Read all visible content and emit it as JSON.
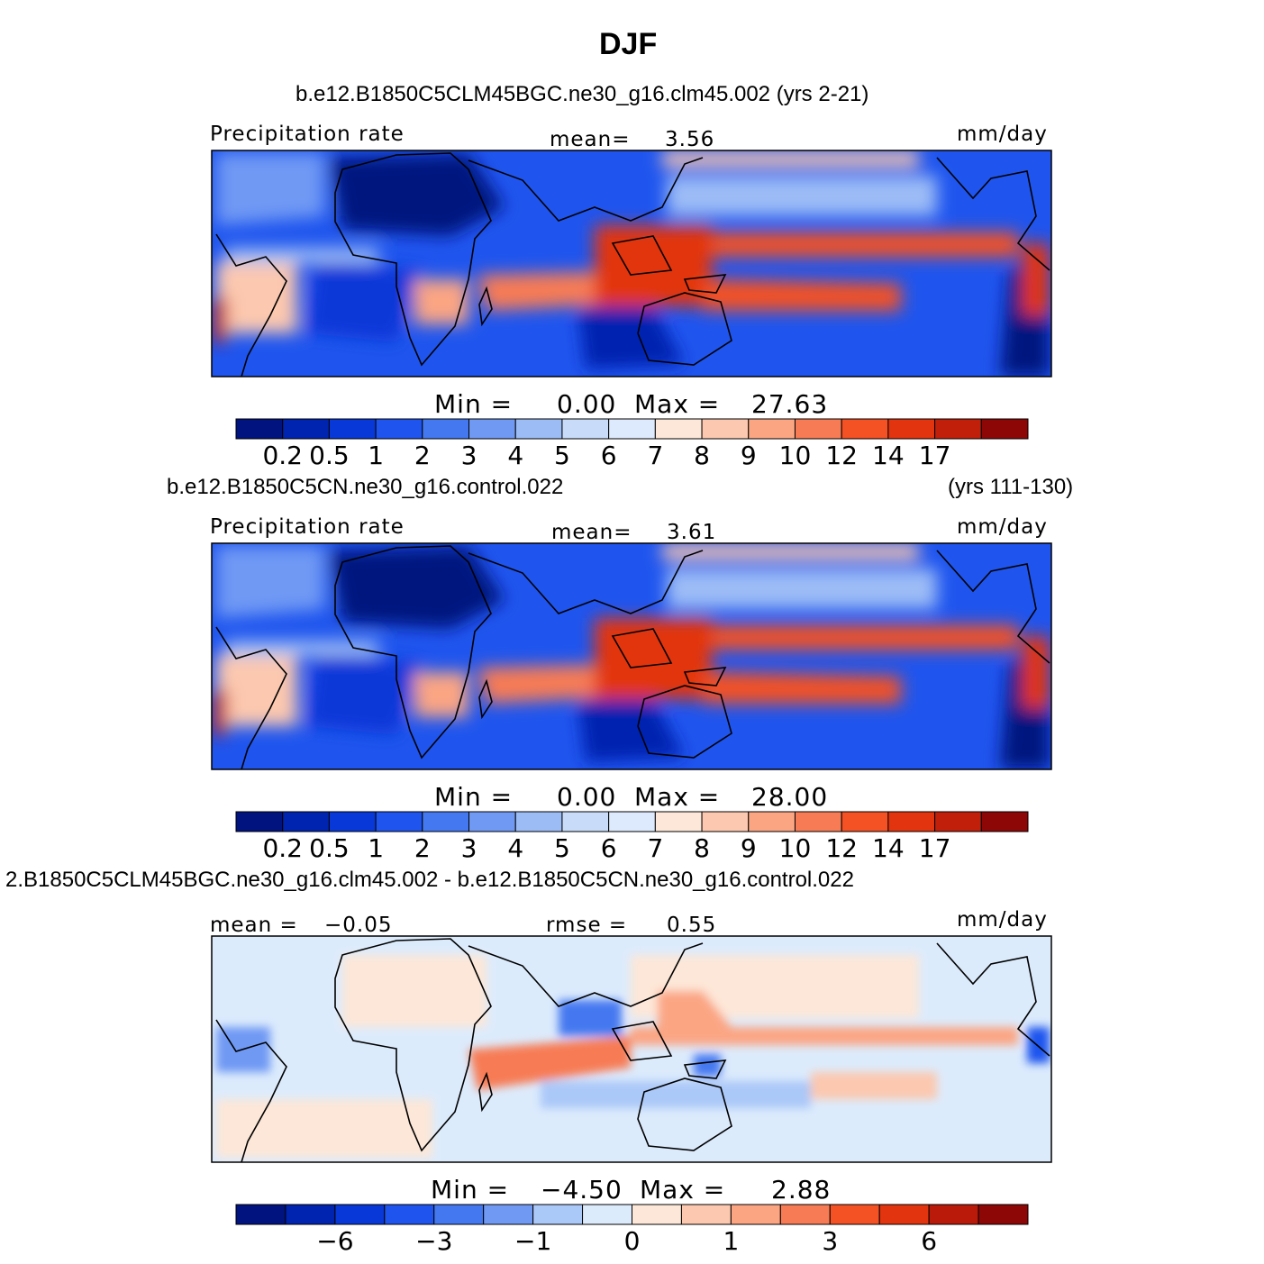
{
  "page": {
    "title": "DJF"
  },
  "colors": {
    "prec_scale": [
      "#00137f",
      "#0024b0",
      "#0839d8",
      "#1f55ee",
      "#4478f0",
      "#7099f4",
      "#9cbcf6",
      "#c8dcfa",
      "#ddeafd",
      "#fde7d8",
      "#fcc8af",
      "#fba583",
      "#f77c55",
      "#f45124",
      "#e2340e",
      "#c21f0b",
      "#8e0707"
    ],
    "diff_scale": [
      "#00137f",
      "#0024b0",
      "#0839d8",
      "#1f55ee",
      "#4478f0",
      "#7099f4",
      "#aac8f8",
      "#dcebfc",
      "#fde7d8",
      "#fcc8af",
      "#fba583",
      "#f77c55",
      "#f45124",
      "#e2340e",
      "#b91a0a",
      "#8e0707"
    ]
  },
  "chart_data": [
    {
      "type": "heatmap",
      "title": "b.e12.B1850C5CLM45BGC.ne30_g16.clm45.002 (yrs 2-21)",
      "variable": "Precipitation  rate",
      "units": "mm/day",
      "mean_label": "mean=",
      "mean_value": "3.56",
      "min_label": "Min  =",
      "min_value": "0.00",
      "max_label": "Max  =",
      "max_value": "27.63",
      "colorbar_ticks": [
        "0.2",
        "0.5",
        "1",
        "2",
        "3",
        "4",
        "5",
        "6",
        "7",
        "8",
        "9",
        "10",
        "12",
        "14",
        "17"
      ]
    },
    {
      "type": "heatmap",
      "title": "b.e12.B1850C5CN.ne30_g16.control.022",
      "years": "(yrs 111-130)",
      "variable": "Precipitation  rate",
      "units": "mm/day",
      "mean_label": "mean=",
      "mean_value": "3.61",
      "min_label": "Min  =",
      "min_value": "0.00",
      "max_label": "Max  =",
      "max_value": "28.00",
      "colorbar_ticks": [
        "0.2",
        "0.5",
        "1",
        "2",
        "3",
        "4",
        "5",
        "6",
        "7",
        "8",
        "9",
        "10",
        "12",
        "14",
        "17"
      ]
    },
    {
      "type": "heatmap",
      "title": "2.B1850C5CLM45BGC.ne30_g16.clm45.002 - b.e12.B1850C5CN.ne30_g16.control.022",
      "units": "mm/day",
      "mean_label": "mean =",
      "mean_value": "−0.05",
      "rmse_label": "rmse  =",
      "rmse_value": "0.55",
      "min_label": "Min  =",
      "min_value": "−4.50",
      "max_label": "Max  =",
      "max_value": "2.88",
      "colorbar_ticks": [
        "−6",
        "−3",
        "−1",
        "0",
        "1",
        "3",
        "6"
      ]
    }
  ]
}
